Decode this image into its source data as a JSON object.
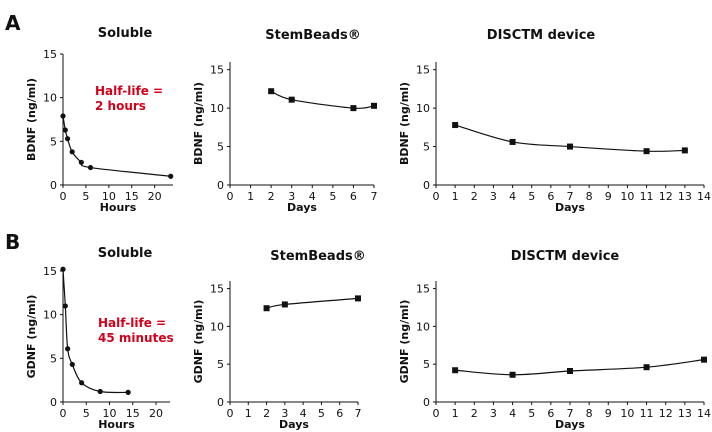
{
  "panel_labels": [
    "A",
    "B"
  ],
  "chart_data": [
    {
      "type": "line",
      "title": "Soluble",
      "xlabel": "Hours",
      "ylabel": "BDNF (ng/ml)",
      "xlim": [
        0,
        24
      ],
      "ylim": [
        0,
        15
      ],
      "xticks": [
        0,
        5,
        10,
        15,
        20
      ],
      "yticks": [
        0,
        5,
        10,
        15
      ],
      "marker": "circle",
      "smooth": true,
      "annotation": [
        "Half-life =",
        "2 hours"
      ],
      "series": [
        {
          "x": [
            0,
            0.5,
            1,
            2,
            4,
            6,
            23.5
          ],
          "y": [
            7.9,
            6.3,
            5.3,
            3.8,
            2.6,
            2.0,
            1.0
          ]
        }
      ]
    },
    {
      "type": "line",
      "title": "StemBeads®",
      "xlabel": "Days",
      "ylabel": "BDNF (ng/ml)",
      "xlim": [
        0,
        7
      ],
      "ylim": [
        0,
        16
      ],
      "xticks": [
        0,
        1,
        2,
        3,
        4,
        5,
        6,
        7
      ],
      "yticks": [
        0,
        5,
        10,
        15
      ],
      "marker": "square",
      "smooth": true,
      "series": [
        {
          "x": [
            2,
            3,
            6,
            7
          ],
          "y": [
            12.2,
            11.1,
            10.0,
            10.3
          ]
        }
      ]
    },
    {
      "type": "line",
      "title": "DISCTM device",
      "xlabel": "Days",
      "ylabel": "BDNF (ng/ml)",
      "xlim": [
        0,
        14
      ],
      "ylim": [
        0,
        16
      ],
      "xticks": [
        0,
        1,
        2,
        3,
        4,
        5,
        6,
        7,
        8,
        9,
        10,
        11,
        12,
        13,
        14
      ],
      "yticks": [
        0,
        5,
        10,
        15
      ],
      "marker": "square",
      "smooth": true,
      "series": [
        {
          "x": [
            1,
            4,
            7,
            11,
            13
          ],
          "y": [
            7.8,
            5.6,
            5.0,
            4.4,
            4.5
          ]
        }
      ]
    },
    {
      "type": "line",
      "title": "Soluble",
      "xlabel": "Hours",
      "ylabel": "GDNF (ng/ml)",
      "xlim": [
        0,
        23
      ],
      "ylim": [
        0,
        15
      ],
      "xticks": [
        0,
        5,
        10,
        15,
        20
      ],
      "yticks": [
        0,
        5,
        10,
        15
      ],
      "marker": "circle",
      "smooth": true,
      "annotation": [
        "Half-life =",
        "45 minutes"
      ],
      "series": [
        {
          "x": [
            0,
            0.5,
            1,
            2,
            4,
            8,
            14
          ],
          "y": [
            15.2,
            11.0,
            6.1,
            4.3,
            2.2,
            1.2,
            1.1
          ]
        }
      ]
    },
    {
      "type": "line",
      "title": "StemBeads®",
      "xlabel": "Days",
      "ylabel": "GDNF (ng/ml)",
      "xlim": [
        0,
        7
      ],
      "ylim": [
        0,
        16
      ],
      "xticks": [
        0,
        1,
        2,
        3,
        4,
        5,
        6,
        7
      ],
      "yticks": [
        0,
        5,
        10,
        15
      ],
      "marker": "square",
      "smooth": true,
      "series": [
        {
          "x": [
            2,
            3,
            7
          ],
          "y": [
            12.4,
            12.9,
            13.7
          ]
        }
      ]
    },
    {
      "type": "line",
      "title": "DISCTM device",
      "xlabel": "Days",
      "ylabel": "GDNF (ng/ml)",
      "xlim": [
        0,
        14
      ],
      "ylim": [
        0,
        16
      ],
      "xticks": [
        0,
        1,
        2,
        3,
        4,
        5,
        6,
        7,
        8,
        9,
        10,
        11,
        12,
        13,
        14
      ],
      "yticks": [
        0,
        5,
        10,
        15
      ],
      "marker": "square",
      "smooth": true,
      "series": [
        {
          "x": [
            1,
            4,
            7,
            11,
            14
          ],
          "y": [
            4.2,
            3.6,
            4.1,
            4.6,
            5.6
          ]
        }
      ]
    }
  ]
}
